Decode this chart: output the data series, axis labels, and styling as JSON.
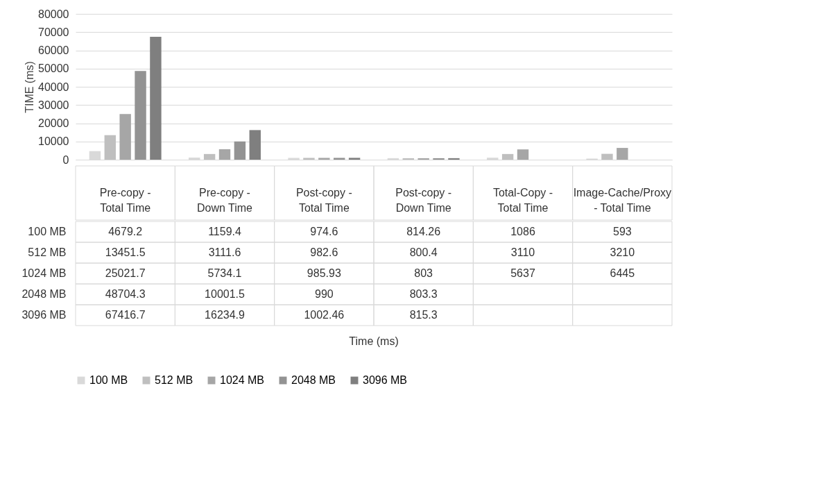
{
  "chart_data": {
    "type": "bar",
    "ylabel": "TIME (ms)",
    "annotations": [
      "Time (ms)"
    ],
    "categories": [
      "Pre-copy - Total Time",
      "Pre-copy - Down Time",
      "Post-copy - Total Time",
      "Post-copy - Down Time",
      "Total-Copy - Total Time",
      "Image-Cache/Proxy - Total Time"
    ],
    "series": [
      {
        "name": "100 MB",
        "color": "#d9d9d9",
        "values": [
          4679.2,
          1159.4,
          974.6,
          814.26,
          1086,
          593
        ]
      },
      {
        "name": "512 MB",
        "color": "#bfbfbf",
        "values": [
          13451.5,
          3111.6,
          982.6,
          800.4,
          3110,
          3210
        ]
      },
      {
        "name": "1024 MB",
        "color": "#a6a6a6",
        "values": [
          25021.7,
          5734.1,
          985.93,
          803,
          5637,
          6445
        ]
      },
      {
        "name": "2048 MB",
        "color": "#939393",
        "values": [
          48704.3,
          10001.5,
          990,
          803.3,
          null,
          null
        ]
      },
      {
        "name": "3096 MB",
        "color": "#7f7f7f",
        "values": [
          67416.7,
          16234.9,
          1002.46,
          815.3,
          null,
          null
        ]
      }
    ],
    "ylim": [
      0,
      80000
    ],
    "yticks": [
      0,
      10000,
      20000,
      30000,
      40000,
      50000,
      60000,
      70000,
      80000
    ],
    "grid": "y",
    "legend": "bottom",
    "data_labels": true
  }
}
